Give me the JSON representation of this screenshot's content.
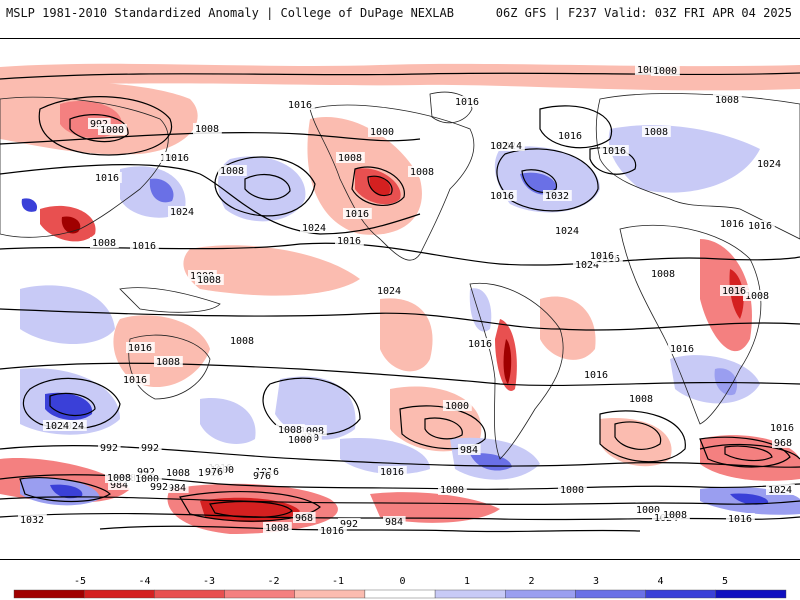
{
  "header": {
    "left": "MSLP 1981-2010 Standardized Anomaly | College of DuPage NEXLAB",
    "right": "06Z GFS | F237 Valid: 03Z FRI APR 04 2025"
  },
  "colors": {
    "neg5": "#a00000",
    "neg4": "#d42020",
    "neg3": "#e85050",
    "neg2": "#f48080",
    "neg1": "#fbbcb0",
    "pos1": "#c8caf6",
    "pos2": "#9a9ef0",
    "pos3": "#6a70e6",
    "pos4": "#3a40d8",
    "pos5": "#1010c0"
  },
  "colorbar": {
    "ticks": [
      "-5",
      "-4",
      "-3",
      "-2",
      "-1",
      "0",
      "1",
      "2",
      "3",
      "4",
      "5"
    ]
  },
  "isobar_labels": [
    "1008",
    "992",
    "1000",
    "1008",
    "1016",
    "1016",
    "1016",
    "1008",
    "1016",
    "1024",
    "1016",
    "1016",
    "1008",
    "1024",
    "1008",
    "1000",
    "1016",
    "1008",
    "1024",
    "1016",
    "1008",
    "1016",
    "1016",
    "1024",
    "1016",
    "1032",
    "1008",
    "1024",
    "1024",
    "1016",
    "1008",
    "1016",
    "1000",
    "1024",
    "1016",
    "1008",
    "1016",
    "1016",
    "1008",
    "1016",
    "1008",
    "1024",
    "1016",
    "1008",
    "1016",
    "1016",
    "1016",
    "1008",
    "1024",
    "1016",
    "1008",
    "992",
    "1000",
    "992",
    "1024",
    "1016",
    "1008",
    "1000",
    "1016",
    "1008",
    "1000",
    "1016",
    "1008",
    "1000",
    "984",
    "968",
    "992",
    "1008",
    "1000",
    "984",
    "984",
    "976",
    "1016",
    "992",
    "976",
    "1008",
    "1000",
    "1000",
    "1032",
    "1008",
    "968",
    "992",
    "984",
    "1016",
    "1000",
    "1024",
    "1016",
    "1008",
    "1024"
  ]
}
